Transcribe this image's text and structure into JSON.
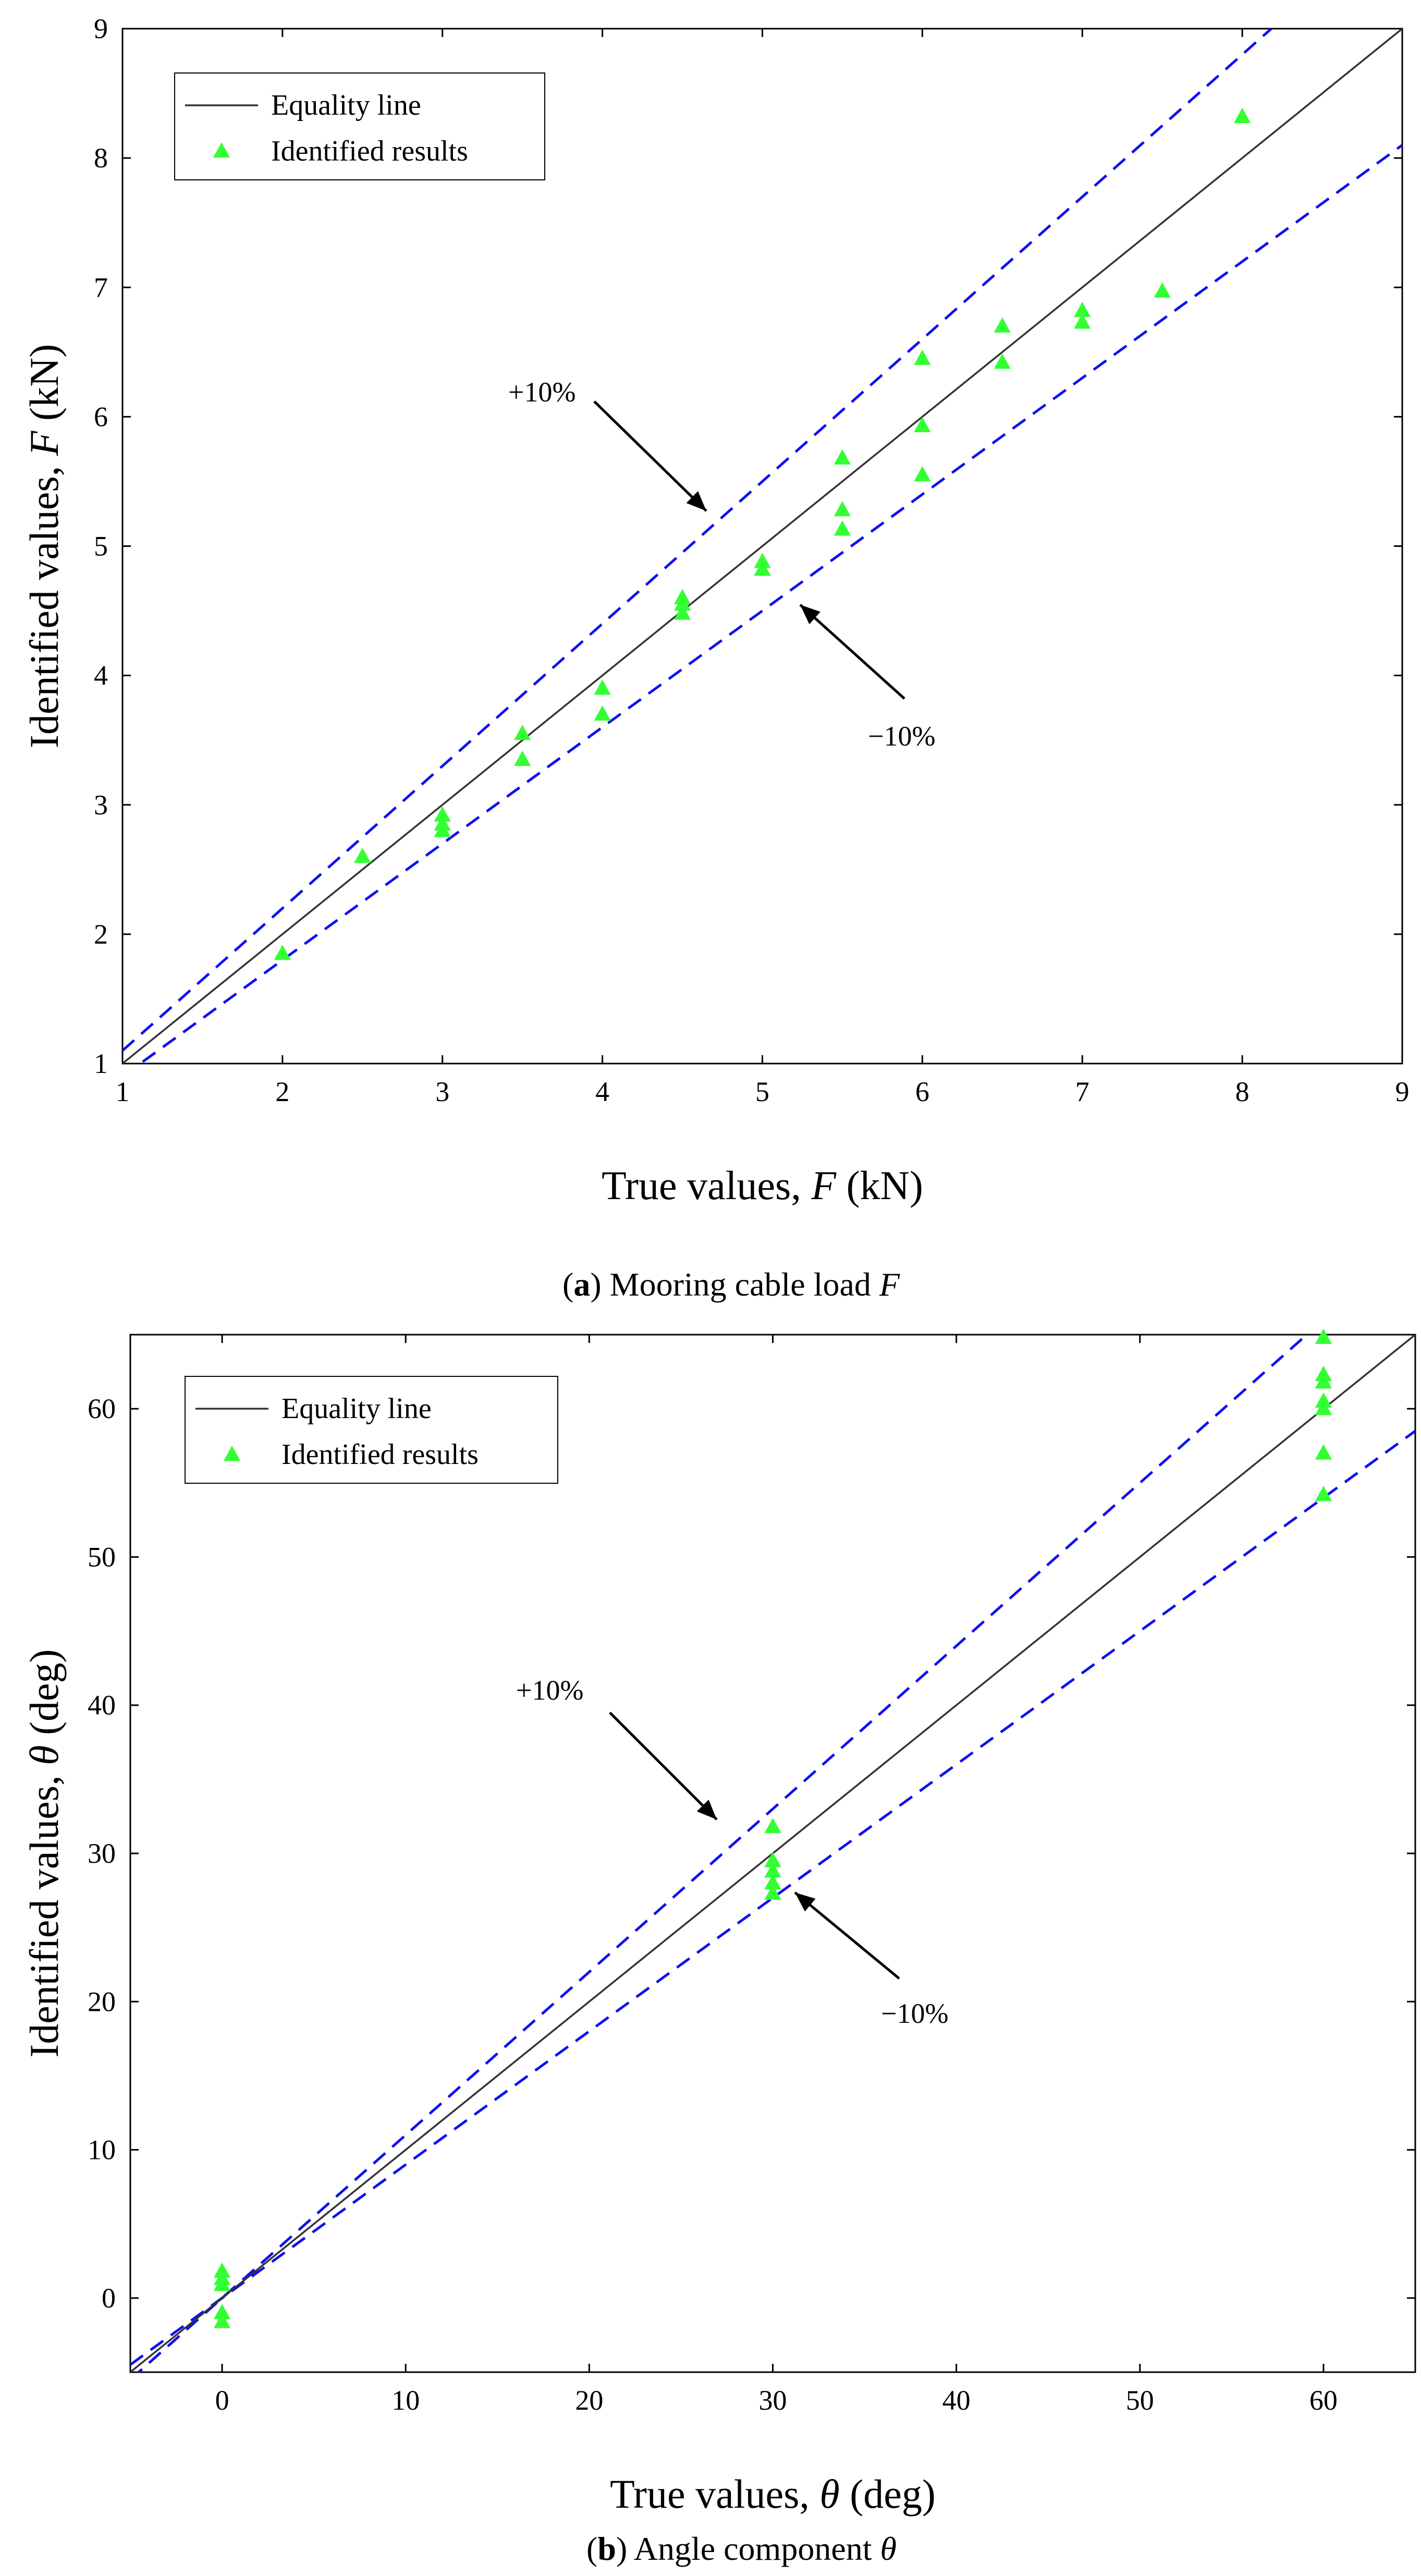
{
  "colors": {
    "equality_line": "#333333",
    "bound_lines": "#1010ee",
    "markers": "#33ff33",
    "annotation_arrow": "#000000"
  },
  "chart_data": [
    {
      "type": "scatter",
      "panel": "a",
      "xlabel": "True values, F (kN)",
      "ylabel": "Identified values, F (kN)",
      "xlabel_parts": {
        "pre": "True values, ",
        "sym": "F",
        "post": " (kN)"
      },
      "ylabel_parts": {
        "pre": "Identified values, ",
        "sym": "F",
        "post": " (kN)"
      },
      "xlim": [
        1,
        9
      ],
      "ylim": [
        1,
        9
      ],
      "xticks": [
        1,
        2,
        3,
        4,
        5,
        6,
        7,
        8,
        9
      ],
      "yticks": [
        1,
        2,
        3,
        4,
        5,
        6,
        7,
        8,
        9
      ],
      "grid": false,
      "legend_position": "top-left",
      "legend": [
        "Equality line",
        "Identified results"
      ],
      "bounds": {
        "upper_label": "+10%",
        "lower_label": "−10%",
        "upper_factor": 1.1,
        "lower_factor": 0.9
      },
      "caption": {
        "letter": "a",
        "text": " Mooring cable load ",
        "sym": "F"
      },
      "series": [
        {
          "name": "Identified results",
          "marker": "triangle",
          "points": [
            [
              2.0,
              1.85
            ],
            [
              2.5,
              2.6
            ],
            [
              3.0,
              2.92
            ],
            [
              3.0,
              2.85
            ],
            [
              3.0,
              2.8
            ],
            [
              3.5,
              3.55
            ],
            [
              3.5,
              3.35
            ],
            [
              4.0,
              3.9
            ],
            [
              4.0,
              3.7
            ],
            [
              4.5,
              4.6
            ],
            [
              4.5,
              4.55
            ],
            [
              4.5,
              4.48
            ],
            [
              5.0,
              4.88
            ],
            [
              5.0,
              4.82
            ],
            [
              5.5,
              5.68
            ],
            [
              5.5,
              5.28
            ],
            [
              5.5,
              5.13
            ],
            [
              6.0,
              6.45
            ],
            [
              6.0,
              5.93
            ],
            [
              6.0,
              5.55
            ],
            [
              6.5,
              6.7
            ],
            [
              6.5,
              6.42
            ],
            [
              7.0,
              6.82
            ],
            [
              7.0,
              6.73
            ],
            [
              7.5,
              6.97
            ],
            [
              8.0,
              8.32
            ]
          ]
        }
      ]
    },
    {
      "type": "scatter",
      "panel": "b",
      "xlabel": "True values, θ (deg)",
      "ylabel": "Identified values, θ (deg)",
      "xlabel_parts": {
        "pre": "True values, ",
        "sym": "θ",
        "post": " (deg)"
      },
      "ylabel_parts": {
        "pre": "Identified values, ",
        "sym": "θ",
        "post": " (deg)"
      },
      "xlim": [
        -5,
        65
      ],
      "ylim": [
        -5,
        65
      ],
      "xticks": [
        0,
        10,
        20,
        30,
        40,
        50,
        60
      ],
      "yticks": [
        0,
        10,
        20,
        30,
        40,
        50,
        60
      ],
      "grid": false,
      "legend_position": "top-left",
      "legend": [
        "Equality line",
        "Identified results"
      ],
      "bounds": {
        "upper_label": "+10%",
        "lower_label": "−10%",
        "upper_factor": 1.1,
        "lower_factor": 0.9
      },
      "caption": {
        "letter": "b",
        "text": " Angle component ",
        "sym": "θ"
      },
      "series": [
        {
          "name": "Identified results",
          "marker": "triangle",
          "points": [
            [
              0,
              1.8
            ],
            [
              0,
              1.3
            ],
            [
              0,
              0.9
            ],
            [
              0,
              -1.0
            ],
            [
              0,
              -1.6
            ],
            [
              30,
              31.8
            ],
            [
              30,
              29.5
            ],
            [
              30,
              28.8
            ],
            [
              30,
              28.0
            ],
            [
              30,
              27.3
            ],
            [
              60,
              64.8
            ],
            [
              60,
              62.3
            ],
            [
              60,
              61.8
            ],
            [
              60,
              60.5
            ],
            [
              60,
              60.0
            ],
            [
              60,
              57.0
            ],
            [
              60,
              54.2
            ]
          ]
        }
      ]
    }
  ]
}
